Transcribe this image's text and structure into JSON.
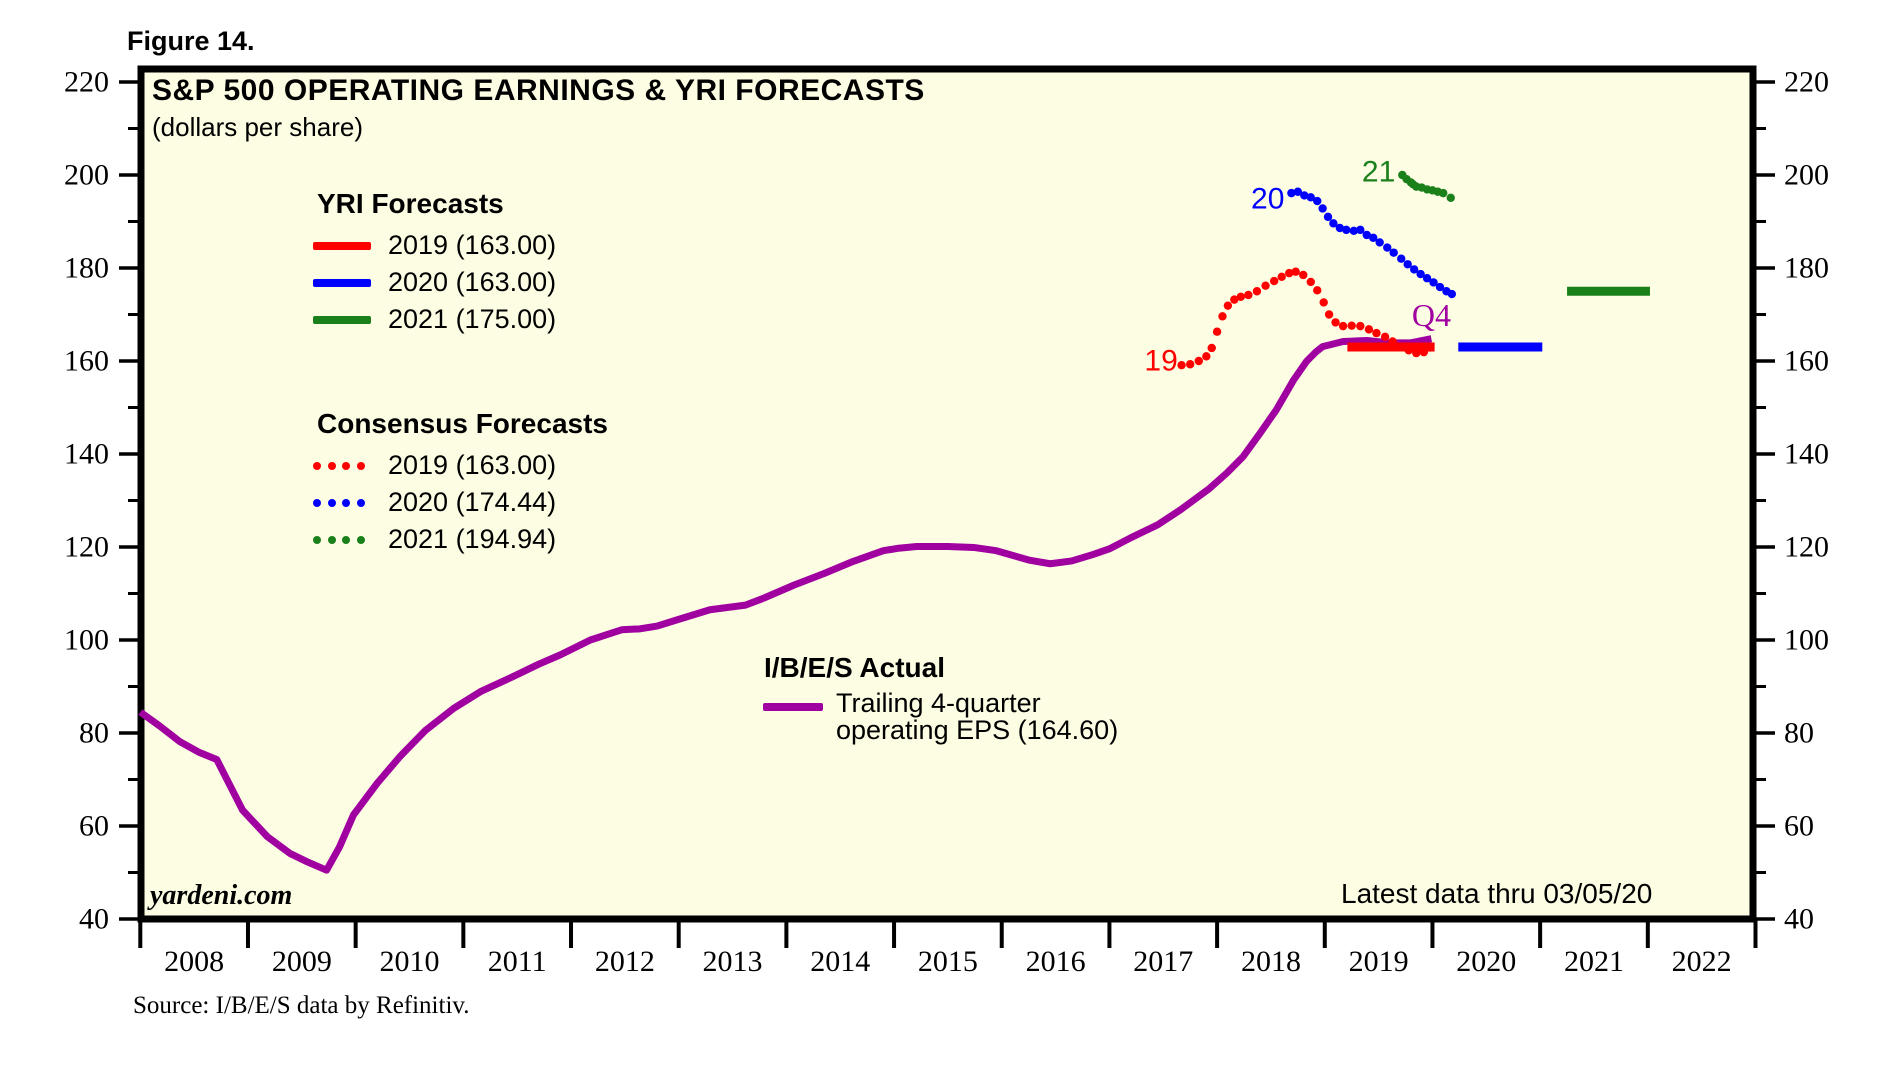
{
  "figure_label": "Figure 14.",
  "title": "S&P 500 OPERATING EARNINGS & YRI FORECASTS",
  "subtitle": "(dollars per share)",
  "watermark": "yardeni.com",
  "latest_note": "Latest data thru 03/05/20",
  "source": "Source: I/B/E/S data by Refinitiv.",
  "colors": {
    "plot_bg": "#FDFDE4",
    "frame": "#000000",
    "red": "#FF0000",
    "blue": "#0000FF",
    "green": "#1A801A",
    "purple": "#A000A0"
  },
  "legends": {
    "yri": {
      "heading": "YRI Forecasts",
      "items": [
        {
          "label": "2019 (163.00)",
          "color": "#FF0000"
        },
        {
          "label": "2020 (163.00)",
          "color": "#0000FF"
        },
        {
          "label": "2021 (175.00)",
          "color": "#1A801A"
        }
      ]
    },
    "consensus": {
      "heading": "Consensus Forecasts",
      "items": [
        {
          "label": "2019 (163.00)",
          "color": "#FF0000"
        },
        {
          "label": "2020 (174.44)",
          "color": "#0000FF"
        },
        {
          "label": "2021 (194.94)",
          "color": "#1A801A"
        }
      ]
    },
    "actual": {
      "heading": "I/B/E/S Actual",
      "color": "#A000A0",
      "line1": "Trailing 4-quarter",
      "line2": "operating EPS (164.60)"
    }
  },
  "annotations": [
    {
      "text": "19",
      "color": "#FF0000",
      "year": 2017.48,
      "value": 160.0,
      "font": "sans"
    },
    {
      "text": "20",
      "color": "#0000FF",
      "year": 2018.47,
      "value": 194.8,
      "font": "sans"
    },
    {
      "text": "21",
      "color": "#1A801A",
      "year": 2019.5,
      "value": 200.6,
      "font": "sans"
    },
    {
      "text": "Q4",
      "color": "#A000A0",
      "year": 2019.99,
      "value": 169.9,
      "font": "serif"
    }
  ],
  "axes": {
    "y_ticks": [
      40,
      60,
      80,
      100,
      120,
      140,
      160,
      180,
      200,
      220
    ],
    "y_minor_ticks": [
      50,
      70,
      90,
      110,
      130,
      150,
      170,
      190,
      210
    ],
    "x_years": [
      2008,
      2009,
      2010,
      2011,
      2012,
      2013,
      2014,
      2015,
      2016,
      2017,
      2018,
      2019,
      2020,
      2021,
      2022
    ],
    "y_range": [
      40,
      220
    ],
    "x_range": [
      2008,
      2023
    ]
  },
  "chart_data": {
    "type": "line",
    "title": "S&P 500 OPERATING EARNINGS & YRI FORECASTS",
    "ylabel": "dollars per share",
    "ylim": [
      40,
      220
    ],
    "xlim": [
      2008,
      2023
    ],
    "grid": false,
    "series": [
      {
        "name": "I/B/E/S Actual trailing 4-quarter operating EPS (164.60)",
        "style": "solid",
        "color": "#A000A0",
        "width": 7,
        "points": [
          [
            2008.0,
            84.5
          ],
          [
            2008.18,
            81.5
          ],
          [
            2008.37,
            78.1
          ],
          [
            2008.55,
            75.8
          ],
          [
            2008.71,
            74.3
          ],
          [
            2008.95,
            63.4
          ],
          [
            2009.18,
            57.7
          ],
          [
            2009.39,
            54.1
          ],
          [
            2009.55,
            52.3
          ],
          [
            2009.73,
            50.5
          ],
          [
            2009.85,
            55.5
          ],
          [
            2009.98,
            62.4
          ],
          [
            2010.2,
            69.2
          ],
          [
            2010.41,
            74.9
          ],
          [
            2010.65,
            80.6
          ],
          [
            2010.91,
            85.3
          ],
          [
            2011.16,
            88.9
          ],
          [
            2011.45,
            92.0
          ],
          [
            2011.7,
            94.8
          ],
          [
            2011.9,
            96.8
          ],
          [
            2012.18,
            100.0
          ],
          [
            2012.47,
            102.2
          ],
          [
            2012.64,
            102.4
          ],
          [
            2012.8,
            103.0
          ],
          [
            2012.98,
            104.3
          ],
          [
            2013.29,
            106.5
          ],
          [
            2013.62,
            107.5
          ],
          [
            2013.79,
            109.0
          ],
          [
            2014.07,
            111.8
          ],
          [
            2014.35,
            114.3
          ],
          [
            2014.62,
            116.9
          ],
          [
            2014.9,
            119.2
          ],
          [
            2015.03,
            119.7
          ],
          [
            2015.21,
            120.1
          ],
          [
            2015.5,
            120.1
          ],
          [
            2015.74,
            119.9
          ],
          [
            2015.95,
            119.2
          ],
          [
            2016.25,
            117.2
          ],
          [
            2016.45,
            116.4
          ],
          [
            2016.65,
            117.0
          ],
          [
            2016.85,
            118.4
          ],
          [
            2017.0,
            119.6
          ],
          [
            2017.2,
            122.0
          ],
          [
            2017.45,
            124.8
          ],
          [
            2017.66,
            128.0
          ],
          [
            2017.93,
            132.6
          ],
          [
            2018.09,
            135.9
          ],
          [
            2018.24,
            139.4
          ],
          [
            2018.4,
            144.5
          ],
          [
            2018.55,
            149.5
          ],
          [
            2018.71,
            155.9
          ],
          [
            2018.83,
            159.9
          ],
          [
            2018.92,
            162.0
          ],
          [
            2018.98,
            163.1
          ],
          [
            2019.17,
            164.2
          ],
          [
            2019.39,
            164.4
          ],
          [
            2019.6,
            163.9
          ],
          [
            2019.8,
            163.9
          ],
          [
            2019.99,
            164.8
          ]
        ]
      },
      {
        "name": "Consensus 2019 (163.00)",
        "style": "dotted",
        "color": "#FF0000",
        "points": [
          [
            2017.67,
            159.1
          ],
          [
            2017.75,
            159.3
          ],
          [
            2017.83,
            160.0
          ],
          [
            2017.9,
            161.0
          ],
          [
            2017.95,
            162.8
          ],
          [
            2018.0,
            166.3
          ],
          [
            2018.05,
            169.6
          ],
          [
            2018.1,
            171.9
          ],
          [
            2018.16,
            173.2
          ],
          [
            2018.22,
            173.8
          ],
          [
            2018.29,
            174.2
          ],
          [
            2018.37,
            175.0
          ],
          [
            2018.45,
            176.2
          ],
          [
            2018.53,
            177.2
          ],
          [
            2018.6,
            178.1
          ],
          [
            2018.67,
            178.9
          ],
          [
            2018.73,
            179.2
          ],
          [
            2018.8,
            178.5
          ],
          [
            2018.87,
            177.0
          ],
          [
            2018.93,
            175.2
          ],
          [
            2018.99,
            172.6
          ],
          [
            2019.04,
            170.0
          ],
          [
            2019.1,
            168.3
          ],
          [
            2019.17,
            167.5
          ],
          [
            2019.25,
            167.6
          ],
          [
            2019.33,
            167.5
          ],
          [
            2019.41,
            166.8
          ],
          [
            2019.48,
            166.0
          ],
          [
            2019.56,
            165.2
          ],
          [
            2019.63,
            164.2
          ],
          [
            2019.71,
            163.1
          ],
          [
            2019.78,
            162.3
          ],
          [
            2019.85,
            161.7
          ],
          [
            2019.92,
            161.9
          ],
          [
            2019.98,
            162.9
          ]
        ]
      },
      {
        "name": "Consensus 2020 (174.44)",
        "style": "dotted",
        "color": "#0000FF",
        "points": [
          [
            2018.69,
            196.1
          ],
          [
            2018.75,
            196.4
          ],
          [
            2018.81,
            195.6
          ],
          [
            2018.87,
            195.2
          ],
          [
            2018.93,
            194.4
          ],
          [
            2018.98,
            192.8
          ],
          [
            2019.03,
            191.0
          ],
          [
            2019.08,
            189.6
          ],
          [
            2019.14,
            188.6
          ],
          [
            2019.2,
            188.2
          ],
          [
            2019.27,
            188.0
          ],
          [
            2019.33,
            188.2
          ],
          [
            2019.39,
            187.1
          ],
          [
            2019.45,
            186.5
          ],
          [
            2019.51,
            185.5
          ],
          [
            2019.58,
            184.4
          ],
          [
            2019.64,
            183.3
          ],
          [
            2019.71,
            182.0
          ],
          [
            2019.77,
            180.8
          ],
          [
            2019.83,
            179.7
          ],
          [
            2019.89,
            178.7
          ],
          [
            2019.95,
            177.8
          ],
          [
            2020.01,
            176.9
          ],
          [
            2020.07,
            175.9
          ],
          [
            2020.13,
            175.0
          ],
          [
            2020.18,
            174.4
          ]
        ]
      },
      {
        "name": "Consensus 2021 (194.94)",
        "style": "dotted",
        "color": "#1A801A",
        "points": [
          [
            2019.72,
            200.0
          ],
          [
            2019.76,
            199.1
          ],
          [
            2019.8,
            198.4
          ],
          [
            2019.82,
            198.0
          ],
          [
            2019.85,
            197.5
          ],
          [
            2019.9,
            197.3
          ],
          [
            2019.95,
            196.9
          ],
          [
            2020.0,
            196.7
          ],
          [
            2020.05,
            196.4
          ],
          [
            2020.1,
            196.1
          ],
          [
            2020.17,
            195.1
          ]
        ]
      },
      {
        "name": "YRI Forecast 2019 (163.00)",
        "style": "solid",
        "color": "#FF0000",
        "width": 9,
        "points": [
          [
            2019.21,
            163.0
          ],
          [
            2020.02,
            163.0
          ]
        ]
      },
      {
        "name": "YRI Forecast 2020 (163.00)",
        "style": "solid",
        "color": "#0000FF",
        "width": 9,
        "points": [
          [
            2020.24,
            163.0
          ],
          [
            2021.02,
            163.0
          ]
        ]
      },
      {
        "name": "YRI Forecast 2021 (175.00)",
        "style": "solid",
        "color": "#1A801A",
        "width": 9,
        "points": [
          [
            2021.25,
            175.0
          ],
          [
            2022.02,
            175.0
          ]
        ]
      }
    ]
  }
}
